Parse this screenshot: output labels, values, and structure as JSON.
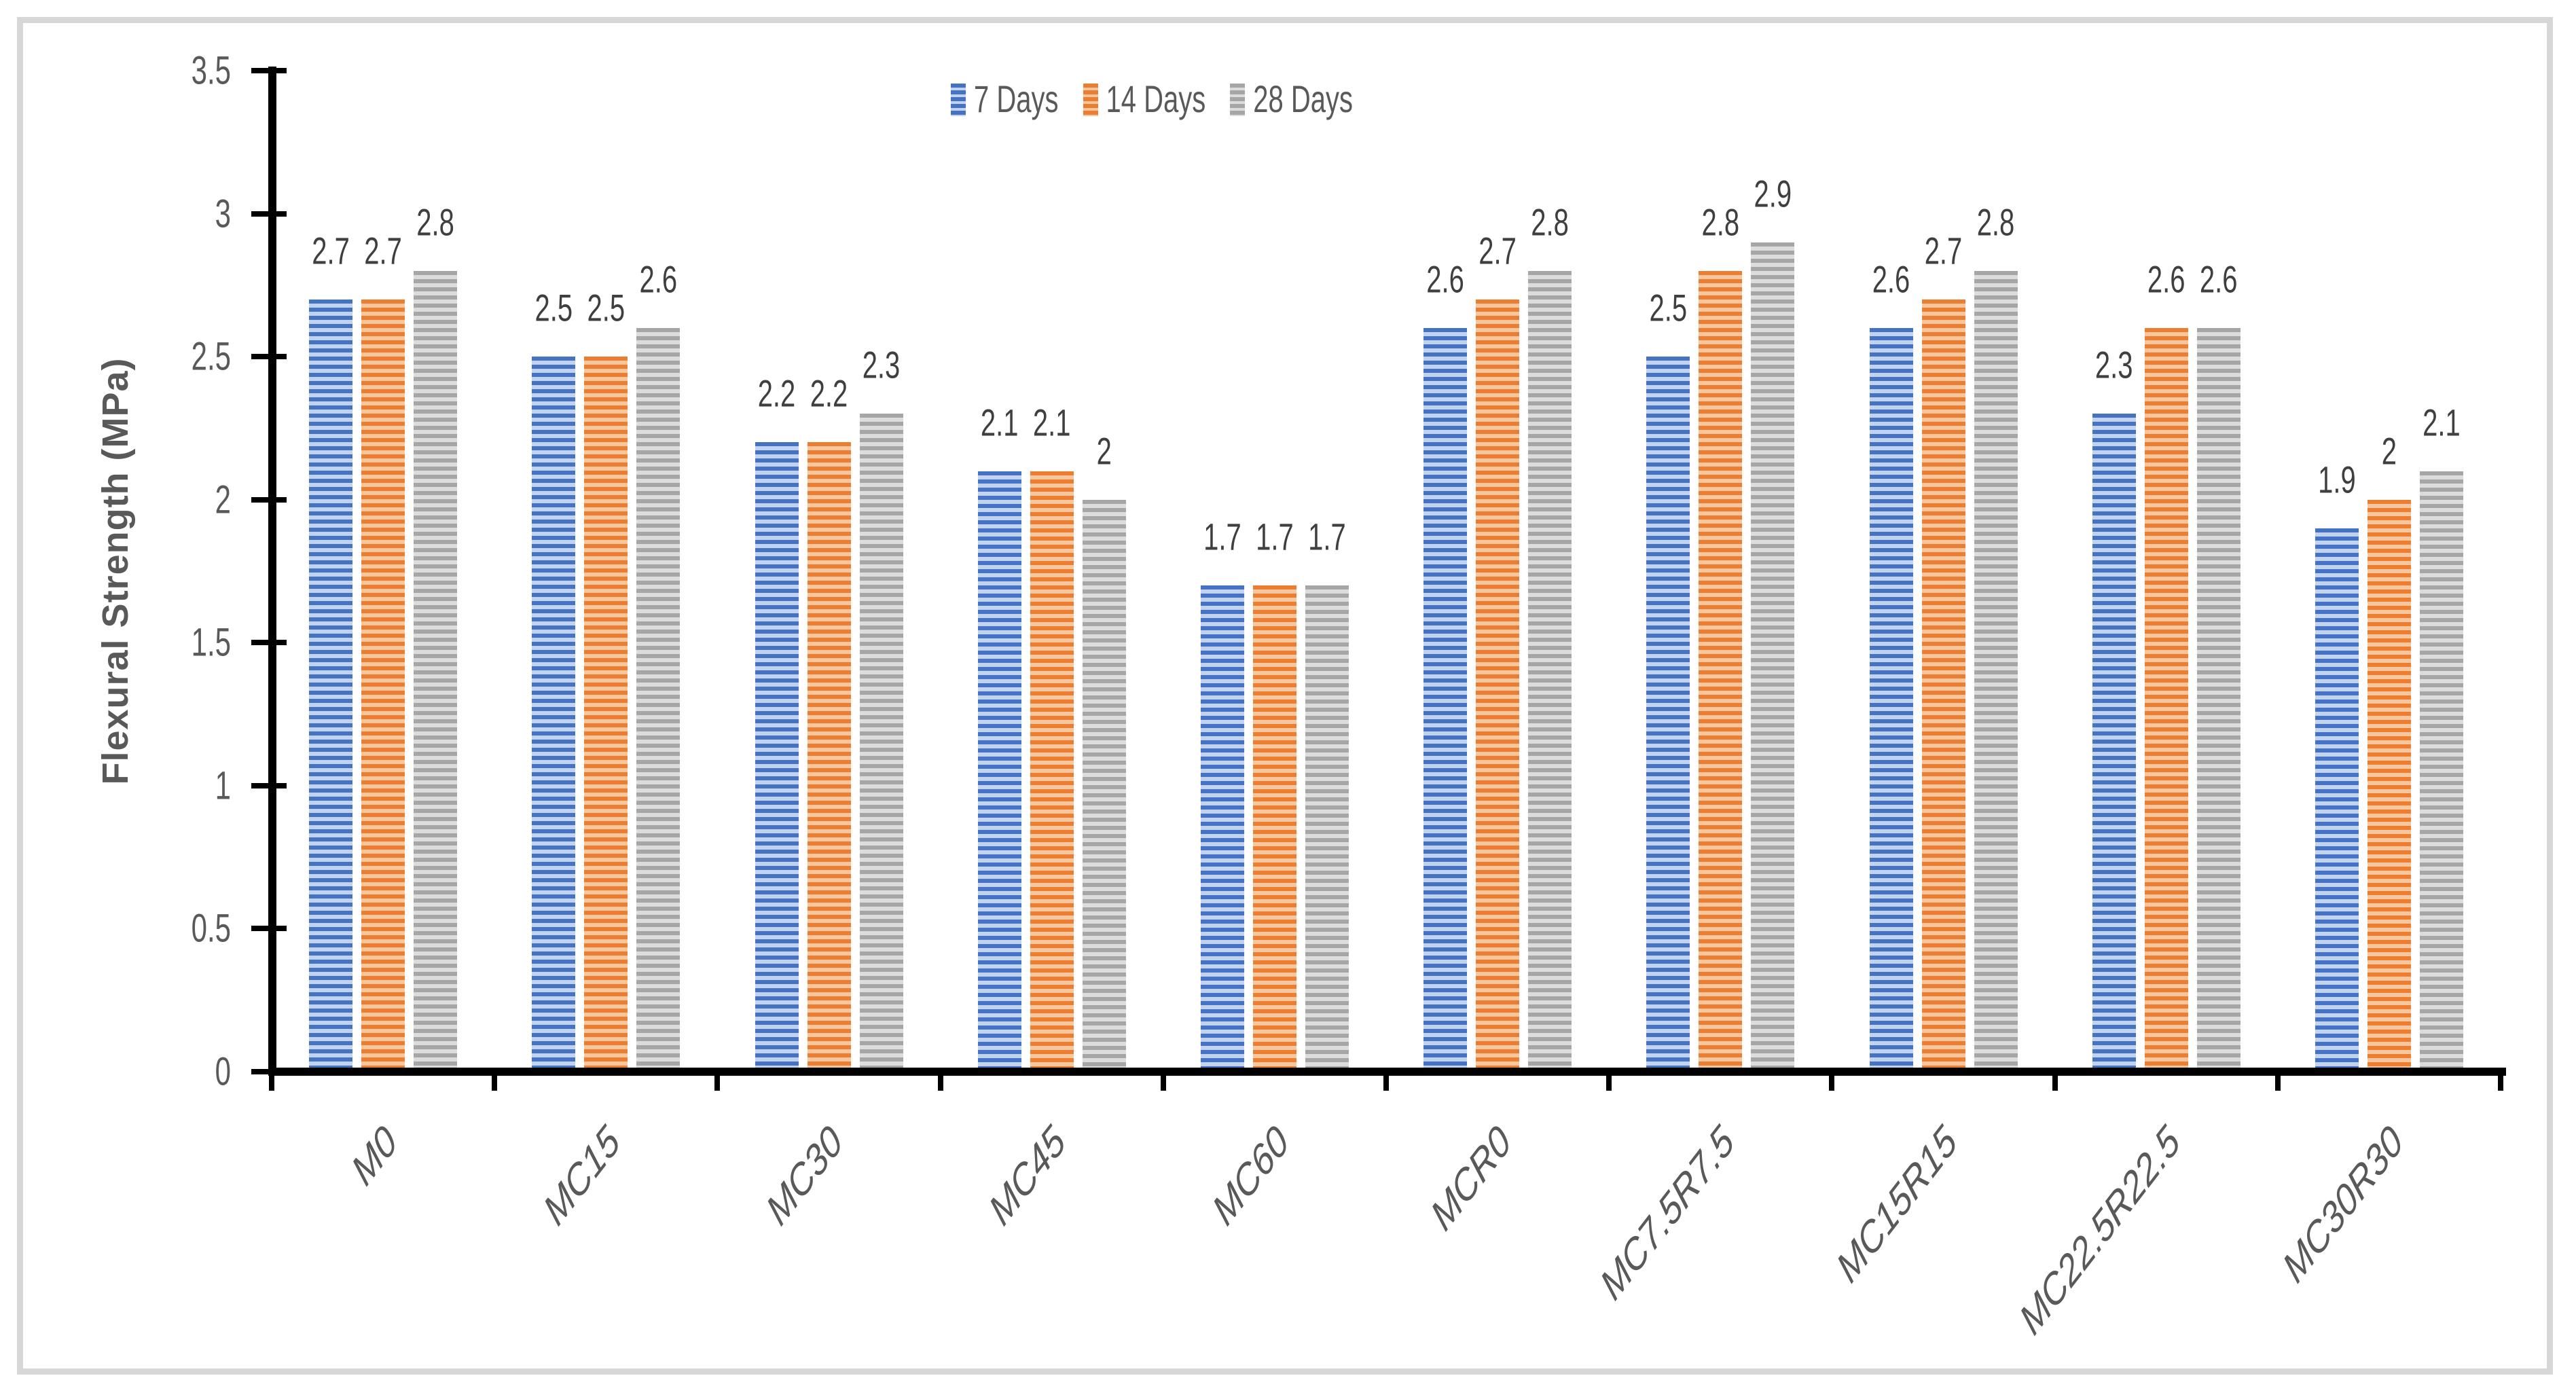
{
  "chart_data": {
    "type": "bar",
    "title": "",
    "ylabel": "Flexural Strength (MPa)",
    "xlabel": "",
    "ylim": [
      0,
      3.5
    ],
    "ytick_step": 0.5,
    "ytick_labels": [
      "0",
      "0.5",
      "1",
      "1.5",
      "2",
      "2.5",
      "3",
      "3.5"
    ],
    "grid": false,
    "legend_position": "top",
    "bar_pattern": "horizontal-stripes",
    "categories": [
      "M0",
      "MC15",
      "MC30",
      "MC45",
      "MC60",
      "MCR0",
      "MC7.5R7.5",
      "MC15R15",
      "MC22.5R22.5",
      "MC30R30"
    ],
    "series": [
      {
        "name": "7 Days",
        "color": "#4472C4",
        "color_light": "#C3D2ED",
        "values": [
          2.7,
          2.5,
          2.2,
          2.1,
          1.7,
          2.6,
          2.5,
          2.6,
          2.3,
          1.9
        ]
      },
      {
        "name": "14 Days",
        "color": "#ED7D31",
        "color_light": "#F6C79F",
        "values": [
          2.7,
          2.5,
          2.2,
          2.1,
          1.7,
          2.7,
          2.8,
          2.7,
          2.6,
          2
        ]
      },
      {
        "name": "28 Days",
        "color": "#A6A6A6",
        "color_light": "#DCDCDC",
        "values": [
          2.8,
          2.6,
          2.3,
          2,
          1.7,
          2.8,
          2.9,
          2.8,
          2.6,
          2.1
        ]
      }
    ],
    "data_labels": [
      [
        "2.7",
        "2.5",
        "2.2",
        "2.1",
        "1.7",
        "2.6",
        "2.5",
        "2.6",
        "2.3",
        "1.9"
      ],
      [
        "2.7",
        "2.5",
        "2.2",
        "2.1",
        "1.7",
        "2.7",
        "2.8",
        "2.7",
        "2.6",
        "2"
      ],
      [
        "2.8",
        "2.6",
        "2.3",
        "2",
        "1.7",
        "2.8",
        "2.9",
        "2.8",
        "2.6",
        "2.1"
      ]
    ],
    "colors": {
      "axis": "#000000",
      "tick_label": "#595959",
      "axis_title": "#595959",
      "data_label": "#3F3F3F",
      "frame_border": "#D7D7D7",
      "background": "#FFFFFF"
    }
  }
}
